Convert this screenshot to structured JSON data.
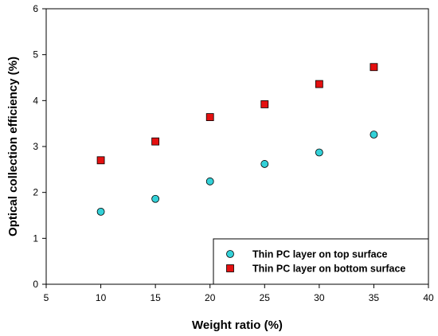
{
  "chart_data": {
    "type": "scatter",
    "xlabel": "Weight ratio (%)",
    "ylabel": "Optical collection efficiency (%)",
    "xlim": [
      5,
      40
    ],
    "ylim": [
      0,
      6
    ],
    "xticks": [
      5,
      10,
      15,
      20,
      25,
      30,
      35,
      40
    ],
    "yticks": [
      0,
      1,
      2,
      3,
      4,
      5,
      6
    ],
    "grid": false,
    "legend_position": "bottom-right",
    "series": [
      {
        "name": "Thin PC layer on top surface",
        "marker": "circle",
        "color": "#33D1D8",
        "x": [
          10,
          15,
          20,
          25,
          30,
          35
        ],
        "y": [
          1.58,
          1.86,
          2.24,
          2.62,
          2.87,
          3.26
        ]
      },
      {
        "name": "Thin PC layer on bottom surface",
        "marker": "square",
        "color": "#E41010",
        "x": [
          10,
          15,
          20,
          25,
          30,
          35
        ],
        "y": [
          2.7,
          3.11,
          3.64,
          3.92,
          4.36,
          4.73
        ]
      }
    ]
  }
}
